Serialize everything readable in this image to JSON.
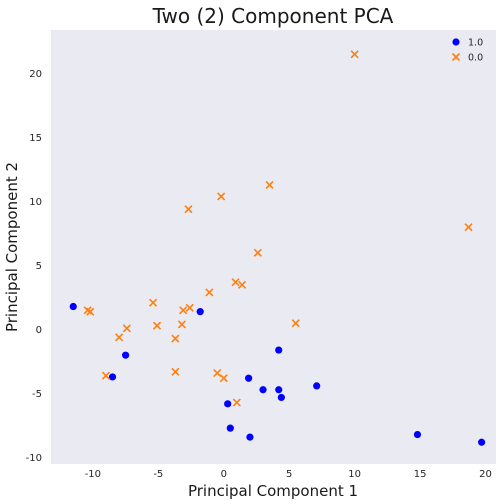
{
  "chart_data": {
    "type": "scatter",
    "title": "Two (2) Component PCA",
    "xlabel": "Principal Component 1",
    "ylabel": "Principal Component 2",
    "xlim": [
      -13.2,
      20.8
    ],
    "ylim": [
      -10.5,
      23.4
    ],
    "xticks": [
      -10,
      -5,
      0,
      5,
      10,
      15,
      20
    ],
    "yticks": [
      -10,
      -5,
      0,
      5,
      10,
      15,
      20
    ],
    "grid": false,
    "legend_position": "top-right",
    "background": "#eaeaf2",
    "series": [
      {
        "name": "1.0",
        "marker": "circle",
        "color": "#0000ff",
        "points": [
          [
            -11.5,
            1.8
          ],
          [
            -1.8,
            1.4
          ],
          [
            -7.5,
            -2.0
          ],
          [
            -8.5,
            -3.7
          ],
          [
            4.2,
            -1.6
          ],
          [
            1.9,
            -3.8
          ],
          [
            3.0,
            -4.7
          ],
          [
            4.2,
            -4.7
          ],
          [
            4.4,
            -5.3
          ],
          [
            7.1,
            -4.4
          ],
          [
            0.3,
            -5.8
          ],
          [
            0.5,
            -7.7
          ],
          [
            2.0,
            -8.4
          ],
          [
            14.8,
            -8.2
          ],
          [
            19.7,
            -8.8
          ]
        ]
      },
      {
        "name": "0.0",
        "marker": "x",
        "color": "#ff7f0e",
        "points": [
          [
            10.0,
            21.5
          ],
          [
            -0.2,
            10.4
          ],
          [
            3.5,
            11.3
          ],
          [
            -2.7,
            9.4
          ],
          [
            2.6,
            6.0
          ],
          [
            18.7,
            8.0
          ],
          [
            -10.4,
            1.5
          ],
          [
            -10.2,
            1.4
          ],
          [
            -8.0,
            -0.6
          ],
          [
            -7.4,
            0.1
          ],
          [
            -5.4,
            2.1
          ],
          [
            -5.1,
            0.3
          ],
          [
            -3.7,
            -0.7
          ],
          [
            -3.1,
            1.5
          ],
          [
            -3.2,
            0.4
          ],
          [
            -2.6,
            1.7
          ],
          [
            -1.1,
            2.9
          ],
          [
            0.9,
            3.7
          ],
          [
            1.4,
            3.5
          ],
          [
            5.5,
            0.5
          ],
          [
            -9.0,
            -3.6
          ],
          [
            -3.7,
            -3.3
          ],
          [
            -0.5,
            -3.4
          ],
          [
            0.0,
            -3.8
          ],
          [
            1.0,
            -5.7
          ]
        ]
      }
    ]
  }
}
